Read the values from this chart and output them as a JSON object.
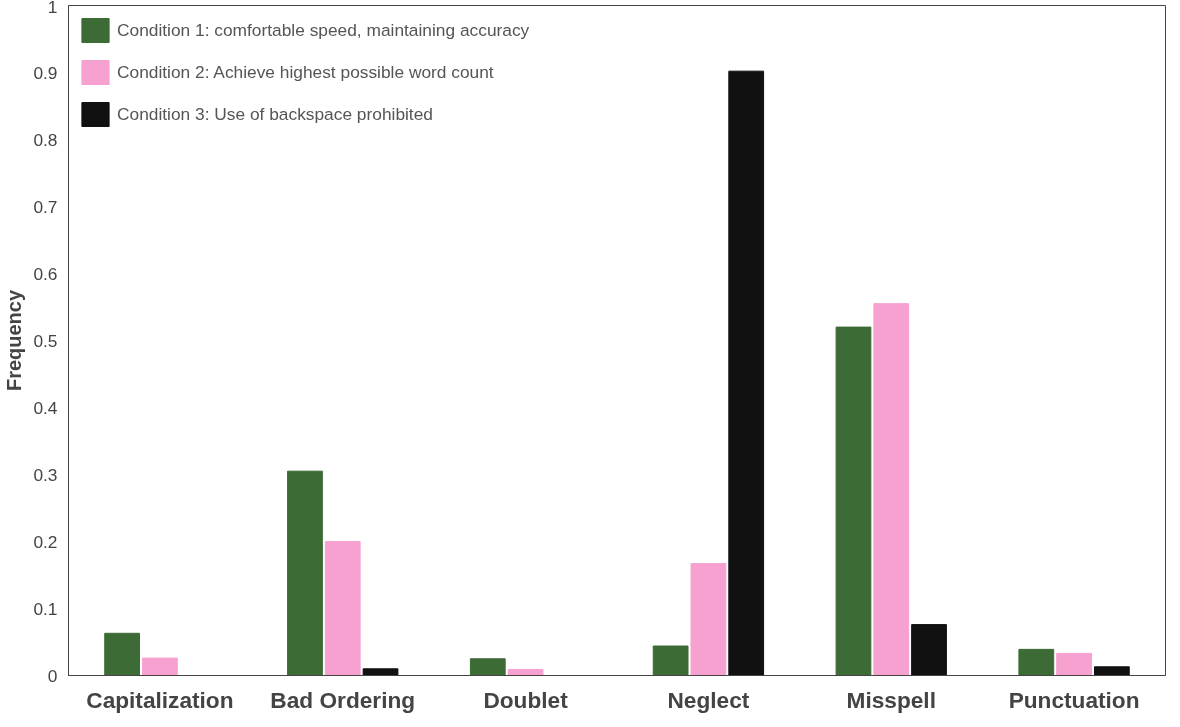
{
  "chart_data": {
    "type": "bar",
    "ylabel": "Frequency",
    "categories": [
      "Capitalization",
      "Bad Ordering",
      "Doublet",
      "Neglect",
      "Misspell",
      "Punctuation"
    ],
    "series": [
      {
        "name": "Condition 1: comfortable speed, maintaining accuracy",
        "color": "#3d6b35",
        "values": [
          0.063,
          0.305,
          0.025,
          0.044,
          0.52,
          0.039
        ]
      },
      {
        "name": "Condition 2: Achieve highest possible word count",
        "color": "#f7a1d1",
        "values": [
          0.026,
          0.2,
          0.009,
          0.167,
          0.555,
          0.033
        ]
      },
      {
        "name": "Condition 3: Use of backspace prohibited",
        "color": "#111111",
        "values": [
          0,
          0.01,
          0,
          0.902,
          0.076,
          0.013
        ]
      }
    ],
    "ylim": [
      0,
      1
    ],
    "yticks": [
      0,
      0.1,
      0.2,
      0.3,
      0.4,
      0.5,
      0.6,
      0.7,
      0.8,
      0.9,
      1
    ],
    "grid": false,
    "legend": "top left"
  }
}
